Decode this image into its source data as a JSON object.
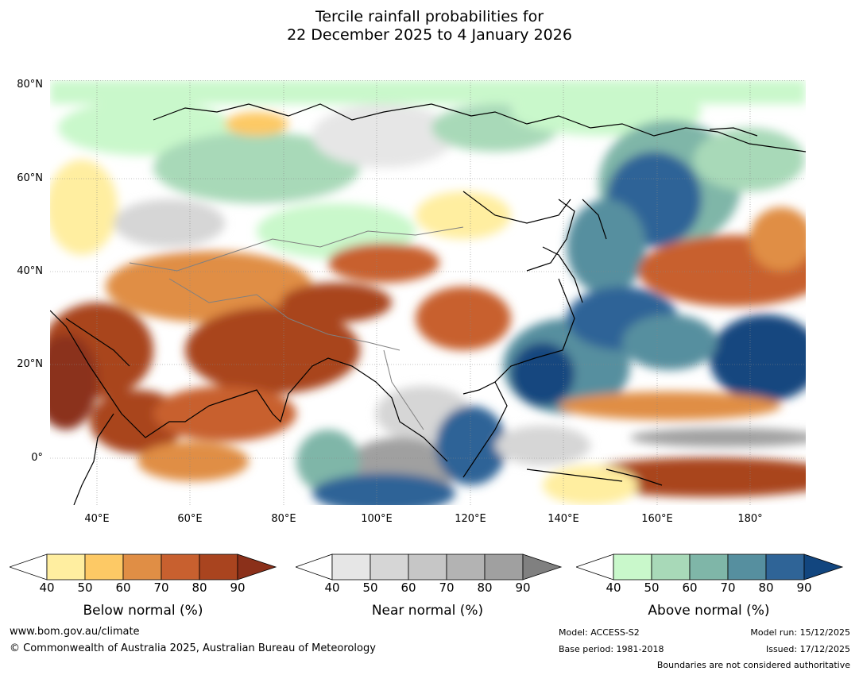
{
  "title": {
    "line1": "Tercile rainfall probabilities for",
    "line2": "22 December 2025 to 4 January 2026"
  },
  "map": {
    "lat_labels": [
      "80°N",
      "60°N",
      "40°N",
      "20°N",
      "0°"
    ],
    "lon_labels": [
      "40°E",
      "60°E",
      "80°E",
      "100°E",
      "120°E",
      "140°E",
      "160°E",
      "180°"
    ],
    "ocean_color": "#ffffff",
    "coast_color": "#000000",
    "border_color": "#808080"
  },
  "colorbars": [
    {
      "name": "below",
      "label": "Below normal (%)",
      "ticks": [
        "40",
        "50",
        "60",
        "70",
        "80",
        "90"
      ],
      "colors": [
        "#ffeea0",
        "#fdc965",
        "#e08e45",
        "#c8602f",
        "#a9441f",
        "#8b301a"
      ]
    },
    {
      "name": "near",
      "label": "Near normal (%)",
      "ticks": [
        "40",
        "50",
        "60",
        "70",
        "80",
        "90"
      ],
      "colors": [
        "#e6e6e6",
        "#d6d6d6",
        "#c6c6c6",
        "#b3b3b3",
        "#a0a0a0",
        "#808080"
      ]
    },
    {
      "name": "above",
      "label": "Above normal (%)",
      "ticks": [
        "40",
        "50",
        "60",
        "70",
        "80",
        "90"
      ],
      "colors": [
        "#c9f8cb",
        "#a8d9b8",
        "#7fb6a8",
        "#568f9f",
        "#2f6497",
        "#12467f"
      ]
    }
  ],
  "footer": {
    "website": "www.bom.gov.au/climate",
    "copyright": "© Commonwealth of Australia 2025, Australian Bureau of Meteorology",
    "model": "Model: ACCESS-S2",
    "base_period": "Base period: 1981-2018",
    "model_run": "Model run: 15/12/2025",
    "issued": "Issued: 17/12/2025",
    "disclaimer": "Boundaries are not considered authoritative"
  }
}
